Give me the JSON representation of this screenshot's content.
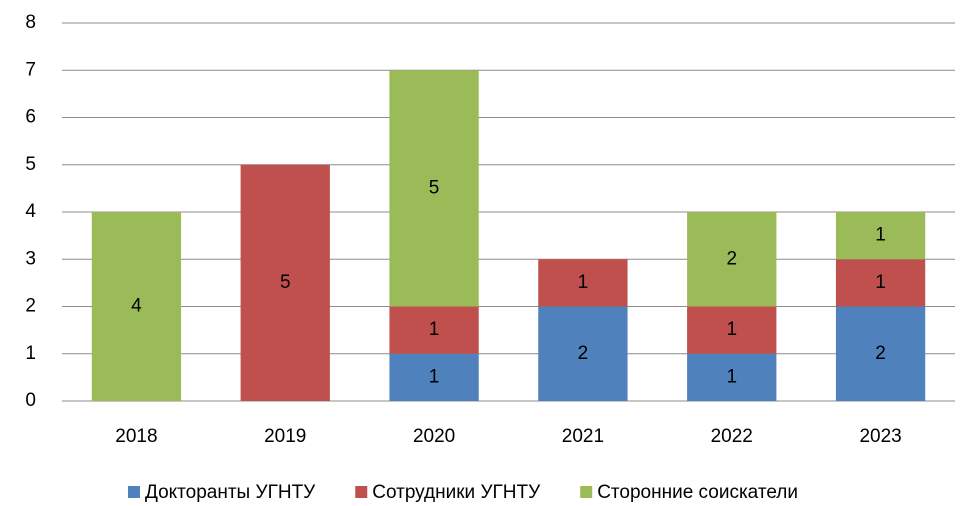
{
  "chart_data": {
    "type": "stacked_bar",
    "categories": [
      "2018",
      "2019",
      "2020",
      "2021",
      "2022",
      "2023"
    ],
    "series": [
      {
        "name": "Докторанты УГНТУ",
        "color": "#4f81bd",
        "values": [
          0,
          0,
          1,
          2,
          1,
          2
        ]
      },
      {
        "name": "Сотрудники УГНТУ",
        "color": "#c0504d",
        "values": [
          0,
          5,
          1,
          1,
          1,
          1
        ]
      },
      {
        "name": "Сторонние соискатели",
        "color": "#9bbb59",
        "values": [
          4,
          0,
          5,
          0,
          2,
          1
        ]
      }
    ],
    "ylim": [
      0,
      8
    ],
    "yticks": [
      0,
      1,
      2,
      3,
      4,
      5,
      6,
      7,
      8
    ],
    "grid": true,
    "legend": "bottom"
  }
}
